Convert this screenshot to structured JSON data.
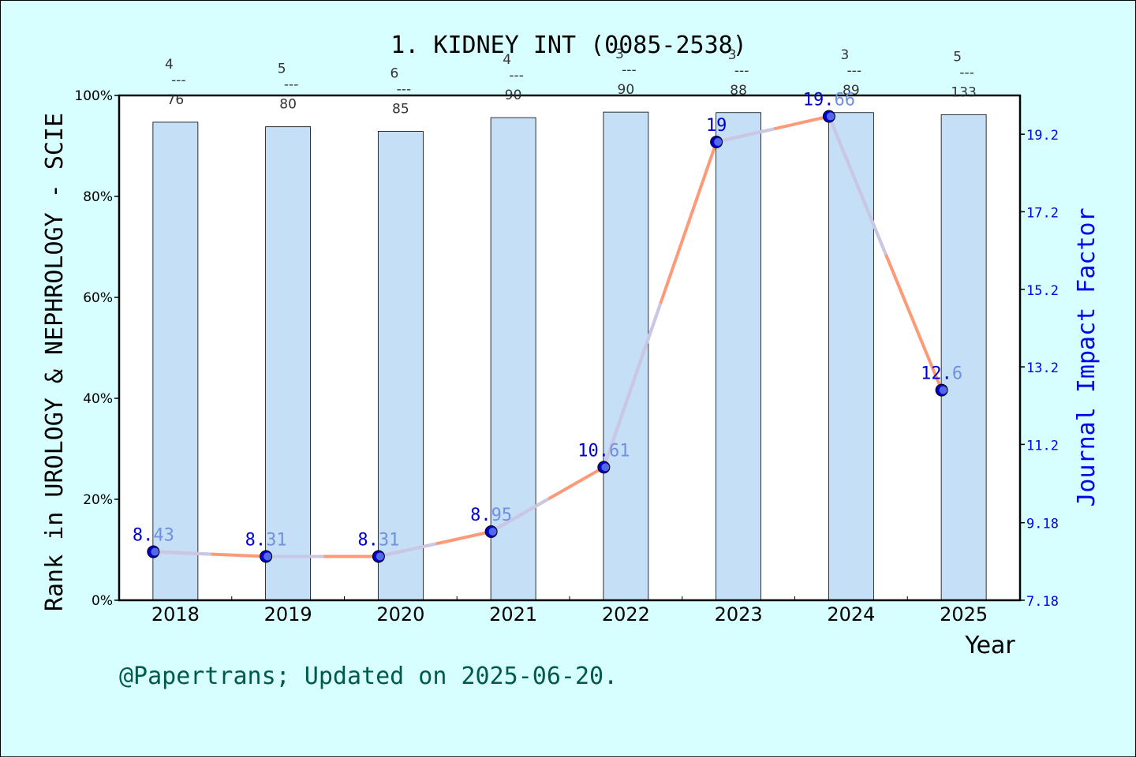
{
  "colors": {
    "background": "#d8ffff",
    "bar_fill": "#c5dff7",
    "line": "#ff9a78",
    "line_highlight": "#c8c8e6",
    "marker": "#0000cc",
    "if_label": "#0000cc",
    "if_label_faded": "#7090e0",
    "right_axis": "#0000ee",
    "footer": "#005a4a"
  },
  "chart_data": {
    "type": "bar",
    "title": "1. KIDNEY INT (0085-2538)",
    "xlabel": "Year",
    "ylabel": "Rank in UROLOGY & NEPHROLOGY - SCIE",
    "y2label": "Journal Impact Factor",
    "categories": [
      "2018",
      "2019",
      "2020",
      "2021",
      "2022",
      "2023",
      "2024",
      "2025"
    ],
    "ylim": [
      0,
      100
    ],
    "yticks": [
      "0%",
      "20%",
      "40%",
      "60%",
      "80%",
      "100%"
    ],
    "y2lim": [
      7.18,
      20.2
    ],
    "y2ticks": [
      "7.18",
      "9.18",
      "11.2",
      "13.2",
      "15.2",
      "17.2",
      "19.2"
    ],
    "rank_labels": [
      {
        "rank": "4",
        "sep": "---",
        "total": "76"
      },
      {
        "rank": "5",
        "sep": "---",
        "total": "80"
      },
      {
        "rank": "6",
        "sep": "---",
        "total": "85"
      },
      {
        "rank": "4",
        "sep": "---",
        "total": "90"
      },
      {
        "rank": "3",
        "sep": "---",
        "total": "90"
      },
      {
        "rank": "3",
        "sep": "---",
        "total": "88"
      },
      {
        "rank": "3",
        "sep": "---",
        "total": "89"
      },
      {
        "rank": "5",
        "sep": "---",
        "total": "133"
      }
    ],
    "series": [
      {
        "values": [
          94.7,
          93.8,
          92.9,
          95.6,
          96.7,
          96.6,
          96.6,
          96.2
        ]
      },
      {
        "values": [
          8.43,
          8.31,
          8.31,
          8.95,
          10.61,
          19,
          19.66,
          12.6
        ],
        "labels": [
          {
            "head": "8.",
            "tail": "43"
          },
          {
            "head": "8.",
            "tail": "31"
          },
          {
            "head": "8.",
            "tail": "31"
          },
          {
            "head": "8.",
            "tail": "95"
          },
          {
            "head": "10.",
            "tail": "61"
          },
          {
            "head": "19",
            "tail": ""
          },
          {
            "head": "19.",
            "tail": "66"
          },
          {
            "head": "12.",
            "tail": "6"
          }
        ]
      }
    ]
  },
  "footer": "@Papertrans; Updated on 2025-06-20."
}
